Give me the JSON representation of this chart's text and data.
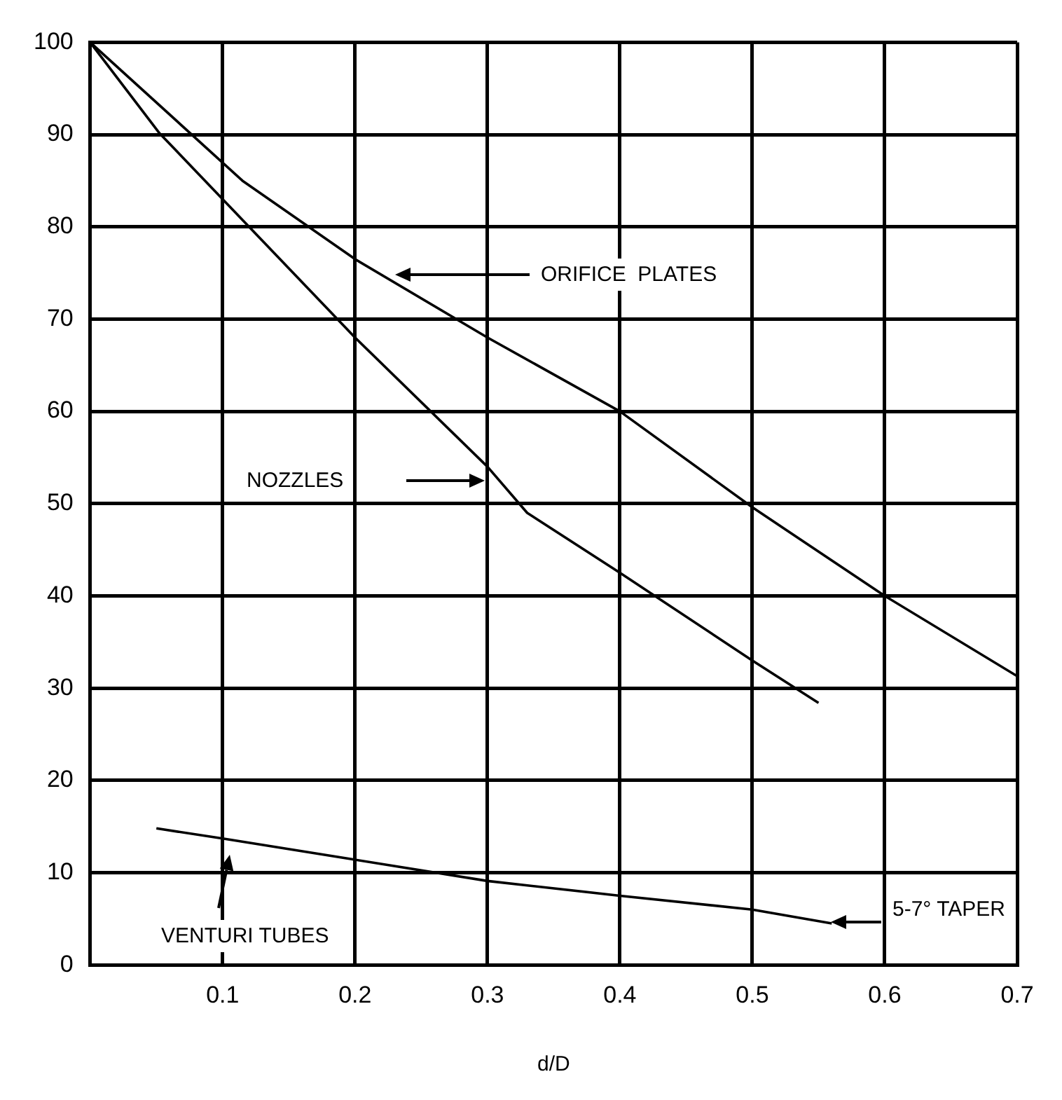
{
  "chart_data": {
    "type": "line",
    "xlabel": "d/D",
    "xlim": [
      0,
      0.7
    ],
    "xticks": [
      0.1,
      0.2,
      0.3,
      0.4,
      0.5,
      0.6,
      0.7
    ],
    "ylim": [
      0,
      100
    ],
    "yticks": [
      0,
      10,
      20,
      30,
      40,
      50,
      60,
      70,
      80,
      90,
      100
    ],
    "grid": true,
    "legend": false,
    "marker": "none",
    "line_style": "solid",
    "series": [
      {
        "color": "#000000",
        "x": [
          0,
          0.115,
          0.2,
          0.3,
          0.4,
          0.5,
          0.6,
          0.7
        ],
        "values": [
          100,
          85,
          76.5,
          68,
          60,
          49.6,
          40,
          31.3
        ]
      },
      {
        "color": "#000000",
        "x": [
          0,
          0.052,
          0.1,
          0.2,
          0.3,
          0.33,
          0.4,
          0.5,
          0.55
        ],
        "values": [
          100,
          90.2,
          83,
          68,
          54,
          49,
          42.5,
          33,
          28.4
        ]
      },
      {
        "color": "#000000",
        "x": [
          0.05,
          0.1,
          0.2,
          0.3,
          0.4,
          0.5,
          0.56
        ],
        "values": [
          14.8,
          13.7,
          11.4,
          9.1,
          7.5,
          6,
          4.5
        ]
      }
    ],
    "annotations": [
      "ORIFICE  PLATES",
      "NOZZLES",
      "VENTURI TUBES",
      "5-7° TAPER"
    ]
  }
}
